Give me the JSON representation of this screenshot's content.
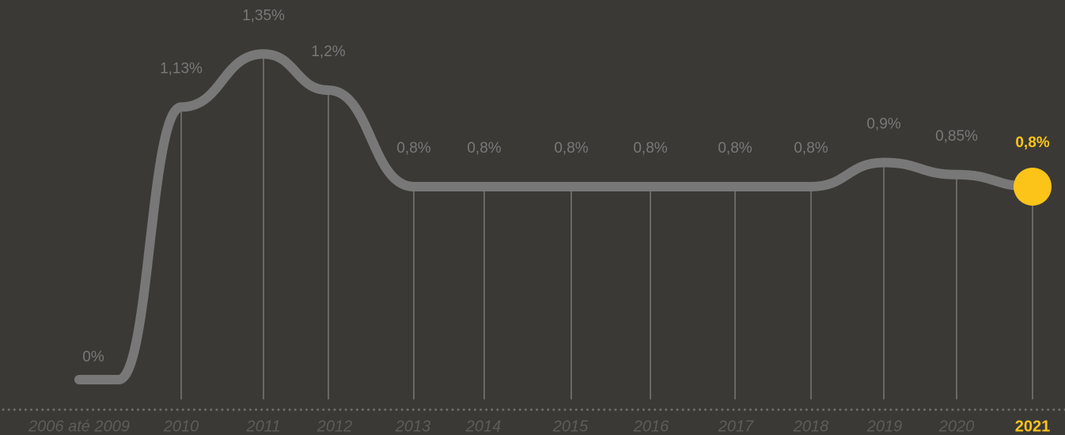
{
  "chart_data": {
    "type": "line",
    "categories": [
      "2006 até 2009",
      "2010",
      "2011",
      "2012",
      "2013",
      "2014",
      "2015",
      "2016",
      "2017",
      "2018",
      "2019",
      "2020",
      "2021"
    ],
    "values": [
      0,
      1.13,
      1.35,
      1.2,
      0.8,
      0.8,
      0.8,
      0.8,
      0.8,
      0.8,
      0.9,
      0.85,
      0.8
    ],
    "value_labels": [
      "0%",
      "1,13%",
      "1,35%",
      "1,2%",
      "0,8%",
      "0,8%",
      "0,8%",
      "0,8%",
      "0,8%",
      "0,8%",
      "0,9%",
      "0,85%",
      "0,8%"
    ],
    "color": "#787878",
    "highlight_color": "#fcc419",
    "ylim": [
      0,
      1.5
    ]
  }
}
